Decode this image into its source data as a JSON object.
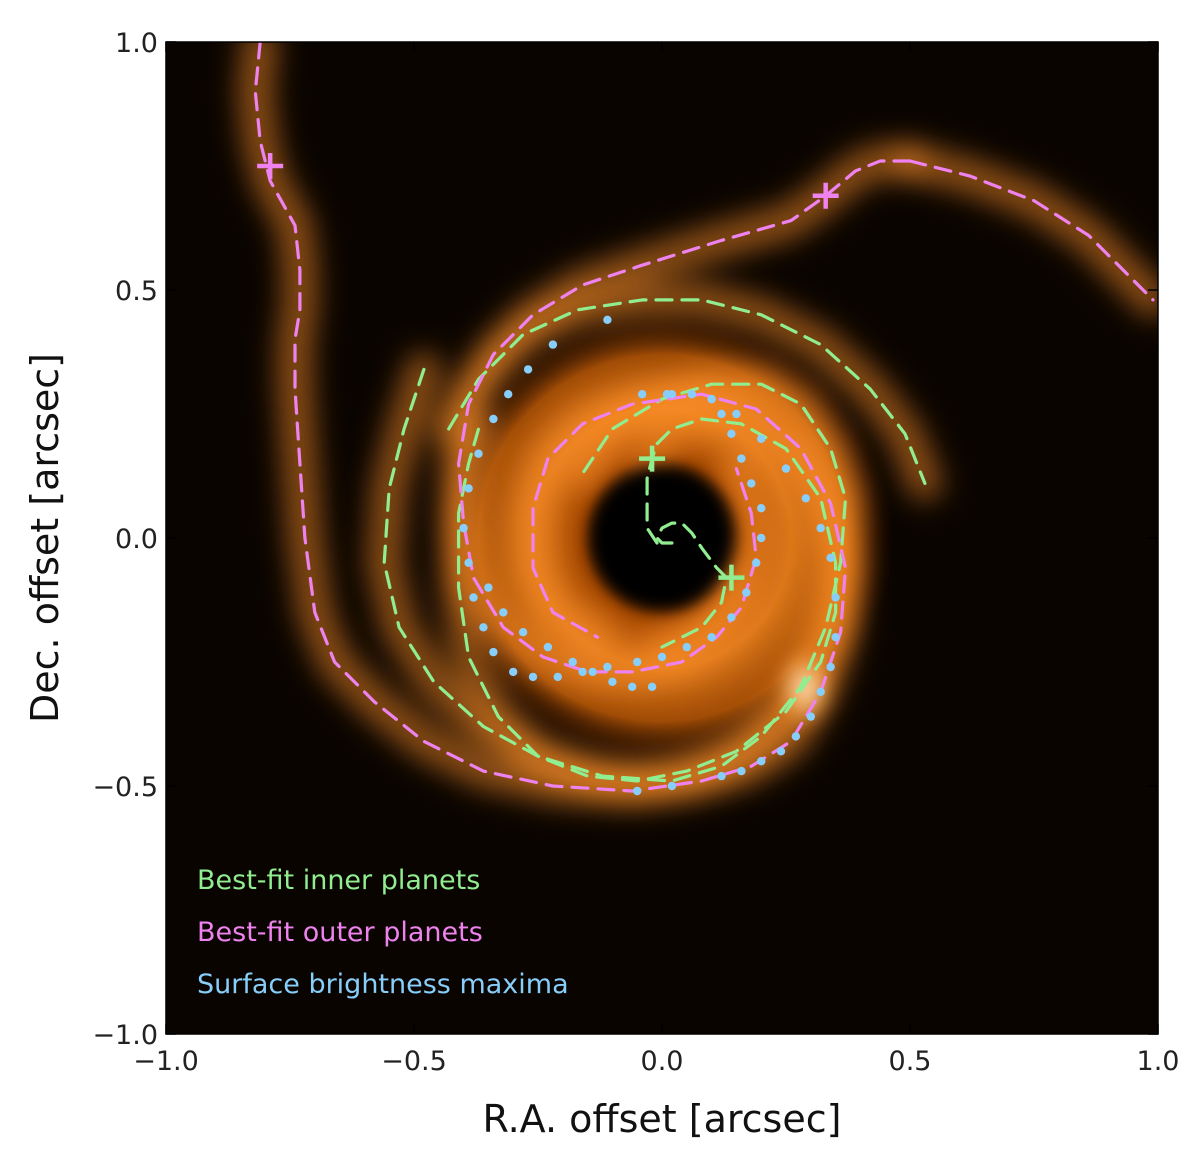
{
  "chart_data": {
    "type": "scatter",
    "title": "",
    "xlabel": "R.A. offset [arcsec]",
    "ylabel": "Dec. offset [arcsec]",
    "xlim": [
      -1.0,
      1.0
    ],
    "ylim": [
      -1.0,
      1.0
    ],
    "x_ticks": [
      -1.0,
      -0.5,
      0.0,
      0.5,
      1.0
    ],
    "y_ticks": [
      -1.0,
      -0.5,
      0.0,
      0.5,
      1.0
    ],
    "x_tick_labels": [
      "−1.0",
      "−0.5",
      "0.0",
      "0.5",
      "1.0"
    ],
    "y_tick_labels": [
      "−1.0",
      "−0.5",
      "0.0",
      "0.5",
      "1.0"
    ],
    "grid": false,
    "legend_position": "bottom-left",
    "colors": {
      "inner": "#90ee90",
      "outer": "#ee82ee",
      "maxima": "#87cefa",
      "background": "#0a0400",
      "disk": "#ff8c1a"
    },
    "series": [
      {
        "name": "Best-fit inner planets",
        "kind": "dashed-line",
        "color": "#90ee90",
        "arms": [
          [
            [
              0.02,
              -0.01
            ],
            [
              0.0,
              -0.01
            ],
            [
              -0.01,
              0.0
            ],
            [
              0.0,
              0.02
            ],
            [
              0.02,
              0.03
            ],
            [
              0.04,
              0.03
            ],
            [
              0.06,
              0.01
            ],
            [
              0.08,
              -0.02
            ],
            [
              0.11,
              -0.06
            ],
            [
              0.13,
              -0.08
            ],
            [
              0.12,
              -0.13
            ],
            [
              0.08,
              -0.18
            ],
            [
              0.0,
              -0.22
            ]
          ],
          [
            [
              -0.01,
              -0.01
            ],
            [
              -0.03,
              0.02
            ],
            [
              -0.03,
              0.08
            ],
            [
              -0.03,
              0.12
            ],
            [
              -0.02,
              0.16
            ],
            [
              -0.01,
              0.19
            ],
            [
              0.02,
              0.22
            ],
            [
              0.08,
              0.24
            ],
            [
              0.16,
              0.23
            ],
            [
              0.25,
              0.18
            ],
            [
              0.32,
              0.08
            ],
            [
              0.35,
              -0.05
            ],
            [
              0.35,
              -0.15
            ],
            [
              0.32,
              -0.25
            ],
            [
              0.25,
              -0.35
            ],
            [
              0.15,
              -0.43
            ],
            [
              0.05,
              -0.47
            ],
            [
              -0.05,
              -0.49
            ],
            [
              -0.15,
              -0.48
            ],
            [
              -0.25,
              -0.44
            ],
            [
              -0.33,
              -0.36
            ],
            [
              -0.39,
              -0.24
            ],
            [
              -0.41,
              -0.1
            ],
            [
              -0.41,
              0.05
            ],
            [
              -0.39,
              0.15
            ],
            [
              -0.37,
              0.22
            ]
          ],
          [
            [
              -0.48,
              0.34
            ],
            [
              -0.52,
              0.22
            ],
            [
              -0.55,
              0.1
            ],
            [
              -0.56,
              -0.05
            ],
            [
              -0.53,
              -0.18
            ],
            [
              -0.46,
              -0.29
            ],
            [
              -0.36,
              -0.38
            ],
            [
              -0.25,
              -0.44
            ],
            [
              -0.12,
              -0.48
            ],
            [
              0.02,
              -0.49
            ],
            [
              0.12,
              -0.46
            ],
            [
              0.2,
              -0.4
            ],
            [
              0.28,
              -0.3
            ],
            [
              0.33,
              -0.18
            ],
            [
              0.36,
              -0.05
            ],
            [
              0.37,
              0.08
            ],
            [
              0.34,
              0.18
            ],
            [
              0.28,
              0.27
            ],
            [
              0.2,
              0.31
            ],
            [
              0.1,
              0.31
            ],
            [
              0.0,
              0.28
            ],
            [
              -0.1,
              0.22
            ],
            [
              -0.16,
              0.13
            ]
          ],
          [
            [
              -0.43,
              0.22
            ],
            [
              -0.37,
              0.32
            ],
            [
              -0.28,
              0.41
            ],
            [
              -0.17,
              0.46
            ],
            [
              -0.04,
              0.48
            ],
            [
              0.08,
              0.48
            ],
            [
              0.2,
              0.45
            ],
            [
              0.32,
              0.39
            ],
            [
              0.42,
              0.3
            ],
            [
              0.49,
              0.21
            ],
            [
              0.53,
              0.11
            ]
          ]
        ]
      },
      {
        "name": "Best-fit outer planets",
        "kind": "dashed-line",
        "color": "#ee82ee",
        "arms": [
          [
            [
              -0.81,
              1.0
            ],
            [
              -0.82,
              0.9
            ],
            [
              -0.81,
              0.8
            ],
            [
              -0.79,
              0.72
            ],
            [
              -0.74,
              0.63
            ],
            [
              -0.73,
              0.54
            ],
            [
              -0.73,
              0.46
            ],
            [
              -0.74,
              0.4
            ],
            [
              -0.74,
              0.3
            ],
            [
              -0.73,
              0.15
            ],
            [
              -0.72,
              0.0
            ],
            [
              -0.7,
              -0.15
            ],
            [
              -0.66,
              -0.25
            ],
            [
              -0.58,
              -0.33
            ],
            [
              -0.48,
              -0.41
            ],
            [
              -0.36,
              -0.47
            ],
            [
              -0.22,
              -0.5
            ],
            [
              -0.06,
              -0.51
            ],
            [
              0.08,
              -0.49
            ],
            [
              0.18,
              -0.46
            ],
            [
              0.26,
              -0.41
            ],
            [
              0.32,
              -0.31
            ],
            [
              0.36,
              -0.19
            ],
            [
              0.37,
              -0.06
            ],
            [
              0.34,
              0.07
            ],
            [
              0.28,
              0.18
            ],
            [
              0.19,
              0.26
            ],
            [
              0.08,
              0.29
            ],
            [
              -0.06,
              0.27
            ],
            [
              -0.16,
              0.23
            ],
            [
              -0.23,
              0.16
            ],
            [
              -0.26,
              0.06
            ],
            [
              -0.26,
              -0.06
            ],
            [
              -0.22,
              -0.15
            ],
            [
              -0.13,
              -0.2
            ]
          ],
          [
            [
              0.5,
              0.76
            ],
            [
              0.44,
              0.76
            ],
            [
              0.39,
              0.74
            ],
            [
              0.33,
              0.69
            ],
            [
              0.26,
              0.64
            ],
            [
              0.12,
              0.6
            ],
            [
              -0.04,
              0.55
            ],
            [
              -0.16,
              0.51
            ],
            [
              -0.26,
              0.45
            ],
            [
              -0.34,
              0.37
            ],
            [
              -0.39,
              0.27
            ],
            [
              -0.41,
              0.15
            ],
            [
              -0.4,
              0.03
            ],
            [
              -0.38,
              -0.08
            ],
            [
              -0.32,
              -0.18
            ],
            [
              -0.24,
              -0.24
            ],
            [
              -0.15,
              -0.27
            ],
            [
              -0.06,
              -0.27
            ],
            [
              0.04,
              -0.25
            ],
            [
              0.11,
              -0.2
            ],
            [
              0.16,
              -0.14
            ],
            [
              0.19,
              -0.04
            ],
            [
              0.18,
              0.05
            ],
            [
              0.15,
              0.14
            ]
          ],
          [
            [
              0.5,
              0.76
            ],
            [
              0.62,
              0.73
            ],
            [
              0.75,
              0.68
            ],
            [
              0.86,
              0.61
            ],
            [
              0.94,
              0.53
            ],
            [
              0.99,
              0.48
            ]
          ]
        ]
      },
      {
        "name": "Surface brightness maxima",
        "kind": "points",
        "color": "#87cefa",
        "x": [
          -0.11,
          -0.22,
          -0.27,
          -0.31,
          -0.34,
          -0.37,
          -0.39,
          -0.4,
          -0.39,
          -0.38,
          -0.36,
          -0.34,
          -0.3,
          -0.26,
          -0.21,
          -0.16,
          -0.11,
          -0.05,
          0.0,
          0.05,
          0.1,
          0.14,
          0.17,
          0.19,
          0.2,
          0.2,
          0.18,
          0.16,
          0.14,
          0.12,
          0.1,
          0.06,
          0.02,
          -0.04,
          0.01,
          0.06,
          0.1,
          0.15,
          0.2,
          0.25,
          0.29,
          0.32,
          0.34,
          0.35,
          0.35,
          0.34,
          0.32,
          0.3,
          0.27,
          0.24,
          0.2,
          0.16,
          0.12,
          -0.05,
          0.02,
          -0.02,
          -0.06,
          -0.1,
          -0.14,
          -0.18,
          -0.23,
          -0.28,
          -0.32,
          -0.35
        ],
        "y": [
          0.44,
          0.39,
          0.34,
          0.29,
          0.24,
          0.17,
          0.1,
          0.02,
          -0.05,
          -0.12,
          -0.18,
          -0.23,
          -0.27,
          -0.28,
          -0.28,
          -0.27,
          -0.26,
          -0.25,
          -0.24,
          -0.22,
          -0.2,
          -0.16,
          -0.11,
          -0.05,
          0.0,
          0.06,
          0.11,
          0.16,
          0.21,
          0.25,
          0.28,
          0.29,
          0.29,
          0.29,
          0.29,
          0.29,
          0.28,
          0.25,
          0.2,
          0.14,
          0.08,
          0.02,
          -0.04,
          -0.12,
          -0.2,
          -0.26,
          -0.31,
          -0.36,
          -0.4,
          -0.43,
          -0.45,
          -0.47,
          -0.48,
          -0.51,
          -0.5,
          -0.3,
          -0.3,
          -0.29,
          -0.27,
          -0.25,
          -0.22,
          -0.19,
          -0.15,
          -0.1
        ]
      }
    ],
    "markers": [
      {
        "series": "inner",
        "label": "+",
        "x": -0.02,
        "y": 0.16
      },
      {
        "series": "inner",
        "label": "+",
        "x": 0.14,
        "y": -0.08
      },
      {
        "series": "outer",
        "label": "+",
        "x": -0.79,
        "y": 0.75
      },
      {
        "series": "outer",
        "label": "+",
        "x": 0.33,
        "y": 0.69
      }
    ],
    "legend": [
      {
        "label": "Best-fit inner planets",
        "color": "#90ee90"
      },
      {
        "label": "Best-fit outer planets",
        "color": "#ee82ee"
      },
      {
        "label": "Surface brightness maxima",
        "color": "#87cefa"
      }
    ]
  }
}
